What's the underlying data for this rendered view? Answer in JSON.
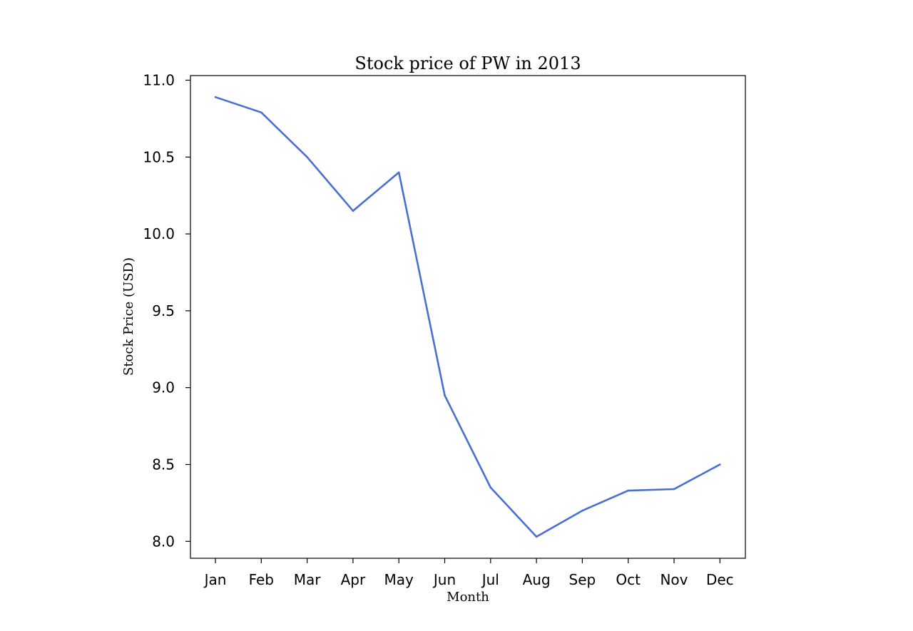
{
  "chart_data": {
    "type": "line",
    "title": "Stock price of PW in 2013",
    "xlabel": "Month",
    "ylabel": "Stock Price (USD)",
    "categories": [
      "Jan",
      "Feb",
      "Mar",
      "Apr",
      "May",
      "Jun",
      "Jul",
      "Aug",
      "Sep",
      "Oct",
      "Nov",
      "Dec"
    ],
    "series": [
      {
        "values": [
          10.89,
          10.79,
          10.5,
          10.15,
          10.4,
          8.95,
          8.35,
          8.03,
          8.2,
          8.33,
          8.34,
          8.5
        ],
        "color": "#4a6fd2"
      }
    ],
    "yticks": [
      "8.0",
      "8.5",
      "9.0",
      "9.5",
      "10.0",
      "10.5",
      "11.0"
    ],
    "ylim": [
      7.89,
      11.03
    ],
    "grid": false,
    "legend": "none"
  }
}
